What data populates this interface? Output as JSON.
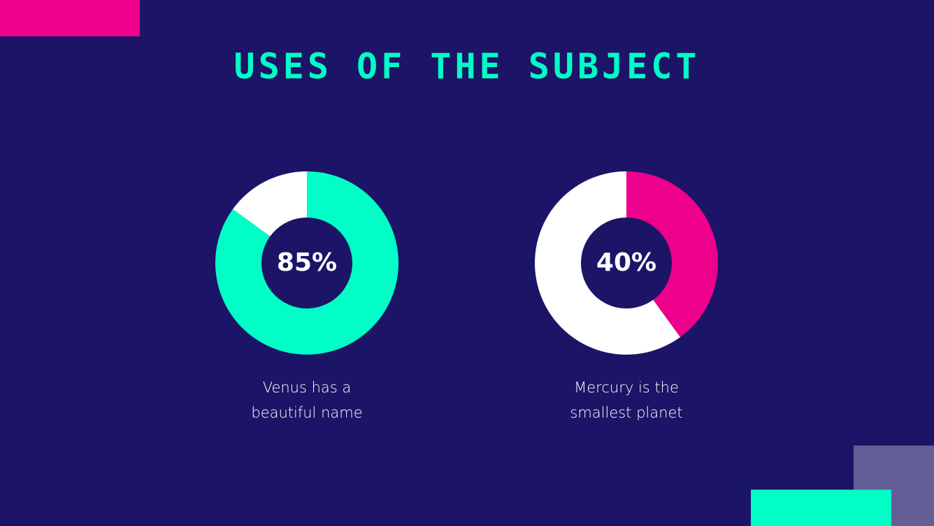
{
  "slide": {
    "title": "USES OF THE SUBJECT"
  },
  "colors": {
    "background": "#1c1466",
    "teal": "#00ffc6",
    "pink": "#ec008c",
    "white": "#ffffff",
    "lavender": "#645e97"
  },
  "chart_data": [
    {
      "type": "pie",
      "donut": true,
      "values": [
        85,
        15
      ],
      "colors": [
        "#00ffc6",
        "#ffffff"
      ],
      "center_label": "85%",
      "caption": [
        "Venus has a",
        "beautiful name"
      ]
    },
    {
      "type": "pie",
      "donut": true,
      "values": [
        40,
        60
      ],
      "colors": [
        "#ec008c",
        "#ffffff"
      ],
      "center_label": "40%",
      "caption": [
        "Mercury is the",
        "smallest planet"
      ]
    }
  ]
}
